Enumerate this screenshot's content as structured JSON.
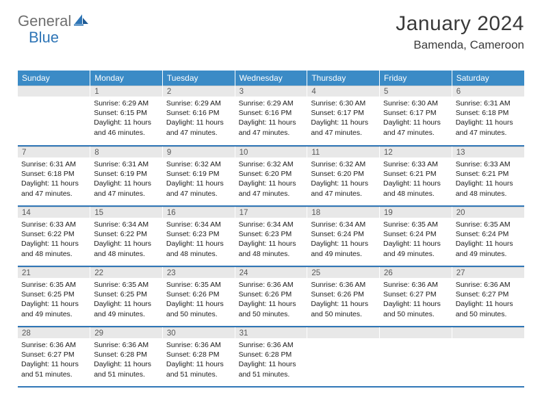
{
  "logo": {
    "text1": "General",
    "text2": "Blue"
  },
  "header": {
    "month_title": "January 2024",
    "location": "Bamenda, Cameroon"
  },
  "colors": {
    "header_bg": "#3b8bc6",
    "header_text": "#ffffff",
    "daynum_bg": "#e8e8e8",
    "daynum_text": "#595959",
    "row_border": "#2e75b6",
    "logo_gray": "#6f6f6f",
    "logo_blue": "#2e75b6"
  },
  "weekdays": [
    "Sunday",
    "Monday",
    "Tuesday",
    "Wednesday",
    "Thursday",
    "Friday",
    "Saturday"
  ],
  "first_weekday_index": 1,
  "days_in_month": 31,
  "days": {
    "1": {
      "sunrise": "6:29 AM",
      "sunset": "6:15 PM",
      "daylight": "11 hours and 46 minutes."
    },
    "2": {
      "sunrise": "6:29 AM",
      "sunset": "6:16 PM",
      "daylight": "11 hours and 47 minutes."
    },
    "3": {
      "sunrise": "6:29 AM",
      "sunset": "6:16 PM",
      "daylight": "11 hours and 47 minutes."
    },
    "4": {
      "sunrise": "6:30 AM",
      "sunset": "6:17 PM",
      "daylight": "11 hours and 47 minutes."
    },
    "5": {
      "sunrise": "6:30 AM",
      "sunset": "6:17 PM",
      "daylight": "11 hours and 47 minutes."
    },
    "6": {
      "sunrise": "6:31 AM",
      "sunset": "6:18 PM",
      "daylight": "11 hours and 47 minutes."
    },
    "7": {
      "sunrise": "6:31 AM",
      "sunset": "6:18 PM",
      "daylight": "11 hours and 47 minutes."
    },
    "8": {
      "sunrise": "6:31 AM",
      "sunset": "6:19 PM",
      "daylight": "11 hours and 47 minutes."
    },
    "9": {
      "sunrise": "6:32 AM",
      "sunset": "6:19 PM",
      "daylight": "11 hours and 47 minutes."
    },
    "10": {
      "sunrise": "6:32 AM",
      "sunset": "6:20 PM",
      "daylight": "11 hours and 47 minutes."
    },
    "11": {
      "sunrise": "6:32 AM",
      "sunset": "6:20 PM",
      "daylight": "11 hours and 47 minutes."
    },
    "12": {
      "sunrise": "6:33 AM",
      "sunset": "6:21 PM",
      "daylight": "11 hours and 48 minutes."
    },
    "13": {
      "sunrise": "6:33 AM",
      "sunset": "6:21 PM",
      "daylight": "11 hours and 48 minutes."
    },
    "14": {
      "sunrise": "6:33 AM",
      "sunset": "6:22 PM",
      "daylight": "11 hours and 48 minutes."
    },
    "15": {
      "sunrise": "6:34 AM",
      "sunset": "6:22 PM",
      "daylight": "11 hours and 48 minutes."
    },
    "16": {
      "sunrise": "6:34 AM",
      "sunset": "6:23 PM",
      "daylight": "11 hours and 48 minutes."
    },
    "17": {
      "sunrise": "6:34 AM",
      "sunset": "6:23 PM",
      "daylight": "11 hours and 48 minutes."
    },
    "18": {
      "sunrise": "6:34 AM",
      "sunset": "6:24 PM",
      "daylight": "11 hours and 49 minutes."
    },
    "19": {
      "sunrise": "6:35 AM",
      "sunset": "6:24 PM",
      "daylight": "11 hours and 49 minutes."
    },
    "20": {
      "sunrise": "6:35 AM",
      "sunset": "6:24 PM",
      "daylight": "11 hours and 49 minutes."
    },
    "21": {
      "sunrise": "6:35 AM",
      "sunset": "6:25 PM",
      "daylight": "11 hours and 49 minutes."
    },
    "22": {
      "sunrise": "6:35 AM",
      "sunset": "6:25 PM",
      "daylight": "11 hours and 49 minutes."
    },
    "23": {
      "sunrise": "6:35 AM",
      "sunset": "6:26 PM",
      "daylight": "11 hours and 50 minutes."
    },
    "24": {
      "sunrise": "6:36 AM",
      "sunset": "6:26 PM",
      "daylight": "11 hours and 50 minutes."
    },
    "25": {
      "sunrise": "6:36 AM",
      "sunset": "6:26 PM",
      "daylight": "11 hours and 50 minutes."
    },
    "26": {
      "sunrise": "6:36 AM",
      "sunset": "6:27 PM",
      "daylight": "11 hours and 50 minutes."
    },
    "27": {
      "sunrise": "6:36 AM",
      "sunset": "6:27 PM",
      "daylight": "11 hours and 50 minutes."
    },
    "28": {
      "sunrise": "6:36 AM",
      "sunset": "6:27 PM",
      "daylight": "11 hours and 51 minutes."
    },
    "29": {
      "sunrise": "6:36 AM",
      "sunset": "6:28 PM",
      "daylight": "11 hours and 51 minutes."
    },
    "30": {
      "sunrise": "6:36 AM",
      "sunset": "6:28 PM",
      "daylight": "11 hours and 51 minutes."
    },
    "31": {
      "sunrise": "6:36 AM",
      "sunset": "6:28 PM",
      "daylight": "11 hours and 51 minutes."
    }
  },
  "labels": {
    "sunrise_prefix": "Sunrise: ",
    "sunset_prefix": "Sunset: ",
    "daylight_prefix": "Daylight: "
  }
}
